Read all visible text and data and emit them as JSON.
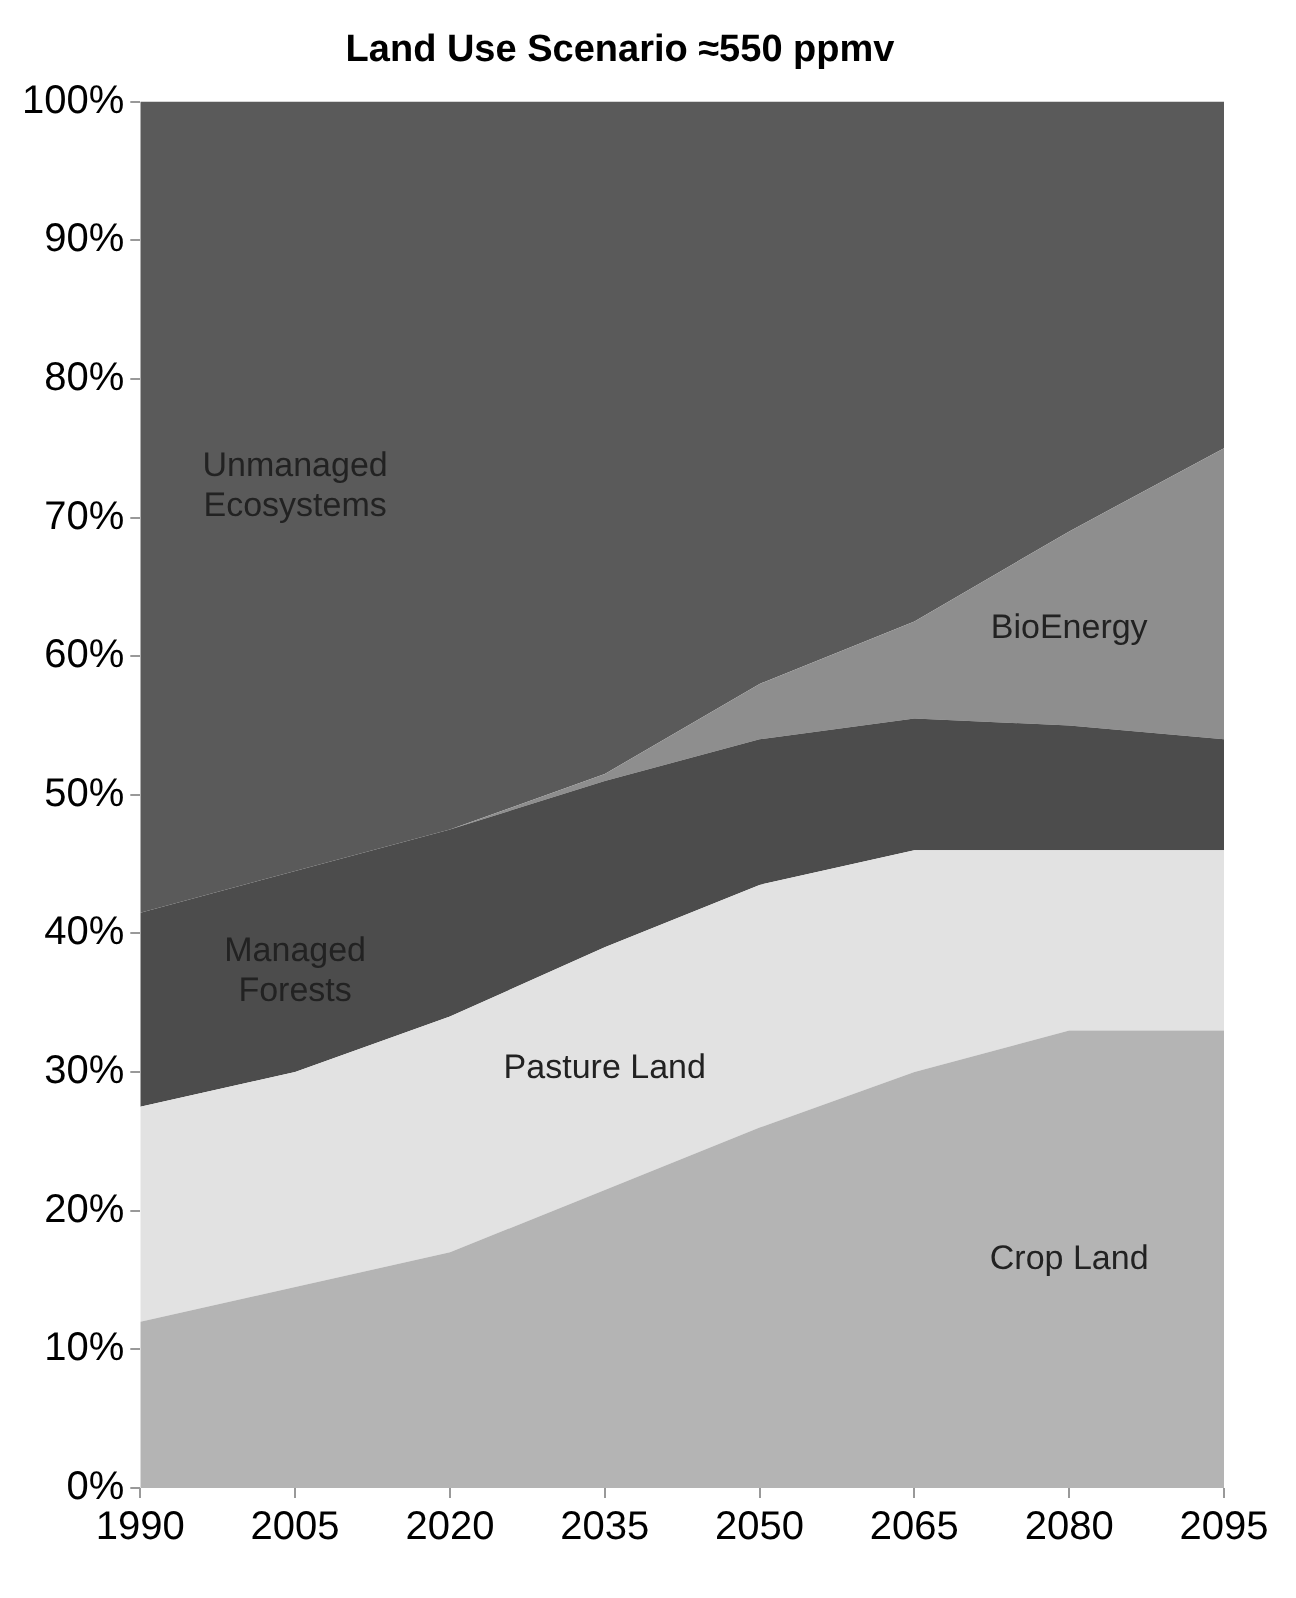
{
  "chart_data": {
    "type": "area",
    "stacked": true,
    "title": "Land Use Scenario ≈550 ppmv",
    "x": [
      1990,
      2005,
      2020,
      2035,
      2050,
      2065,
      2080,
      2095
    ],
    "xlim": [
      1990,
      2095
    ],
    "xticks": [
      1990,
      2005,
      2020,
      2035,
      2050,
      2065,
      2080,
      2095
    ],
    "ylim": [
      0,
      100
    ],
    "yticks": [
      {
        "value": 0,
        "label": "0%"
      },
      {
        "value": 10,
        "label": "10%"
      },
      {
        "value": 20,
        "label": "20%"
      },
      {
        "value": 30,
        "label": "30%"
      },
      {
        "value": 40,
        "label": "40%"
      },
      {
        "value": 50,
        "label": "50%"
      },
      {
        "value": 60,
        "label": "60%"
      },
      {
        "value": 70,
        "label": "70%"
      },
      {
        "value": 80,
        "label": "80%"
      },
      {
        "value": 90,
        "label": "90%"
      },
      {
        "value": 100,
        "label": "100%"
      }
    ],
    "grid": false,
    "legend": false,
    "series": [
      {
        "name": "Crop Land",
        "color": "#b4b4b4",
        "values": [
          12,
          14.5,
          17,
          21.5,
          26,
          30,
          33,
          33
        ]
      },
      {
        "name": "Pasture Land",
        "color": "#e2e2e2",
        "values": [
          15.5,
          15.5,
          17,
          17.5,
          17.5,
          16,
          13,
          13
        ]
      },
      {
        "name": "Managed Forests",
        "color": "#4c4c4c",
        "values": [
          14,
          14.5,
          13.5,
          12,
          10.5,
          9.5,
          9,
          8
        ]
      },
      {
        "name": "BioEnergy",
        "color": "#8e8e8e",
        "values": [
          0,
          0,
          0,
          0.5,
          4,
          7,
          14,
          21
        ]
      },
      {
        "name": "Unmanaged Ecosystems",
        "color": "#5a5a5a",
        "values": [
          58.5,
          55.5,
          52.5,
          48.5,
          42,
          37.5,
          31,
          25
        ]
      }
    ]
  }
}
